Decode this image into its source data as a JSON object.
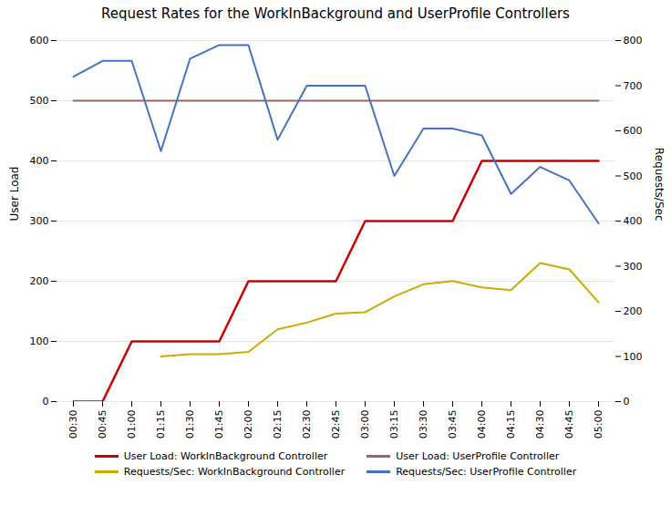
{
  "chart_data": {
    "type": "line",
    "title": "Request Rates for the WorkInBackground and UserProfile Controllers",
    "ylabel": "User Load",
    "y2label": "Requests/Sec",
    "categories": [
      "00:30",
      "00:45",
      "01:00",
      "01:15",
      "01:30",
      "01:45",
      "02:00",
      "02:15",
      "02:30",
      "02:45",
      "03:00",
      "03:15",
      "03:30",
      "03:45",
      "04:00",
      "04:15",
      "04:30",
      "04:45",
      "05:00"
    ],
    "series": [
      {
        "name": "User Load: WorkInBackground Controller",
        "color": "#cc0000",
        "values": [
          0,
          0,
          100,
          100,
          100,
          100,
          200,
          200,
          200,
          200,
          300,
          300,
          300,
          300,
          400,
          400,
          400,
          400,
          400
        ]
      },
      {
        "name": "User Load: UserProfile Controller",
        "color": "#996666",
        "values": [
          500,
          500,
          500,
          500,
          500,
          500,
          500,
          500,
          500,
          500,
          500,
          500,
          500,
          500,
          500,
          500,
          500,
          500,
          500
        ]
      },
      {
        "name": "Requests/Sec: WorkInBackground Controller",
        "color": "#ccaa00",
        "axis": "y2",
        "values": [
          null,
          null,
          null,
          100,
          105,
          105,
          110,
          160,
          175,
          195,
          198,
          233,
          260,
          267,
          253,
          247,
          307,
          293,
          220
        ]
      },
      {
        "name": "Requests/Sec: UserProfile Controller",
        "color": "#4472c4",
        "axis": "y2",
        "values": [
          720,
          755,
          755,
          555,
          760,
          790,
          790,
          580,
          700,
          700,
          700,
          500,
          605,
          605,
          590,
          460,
          520,
          490,
          395
        ]
      }
    ],
    "ylim": [
      0,
      600
    ],
    "yticks": [
      0,
      100,
      200,
      300,
      400,
      500,
      600
    ],
    "y2lim": [
      0,
      800
    ],
    "y2ticks": [
      0,
      100,
      200,
      300,
      400,
      500,
      600,
      700,
      800
    ],
    "grid": true,
    "legend": "bottom"
  }
}
